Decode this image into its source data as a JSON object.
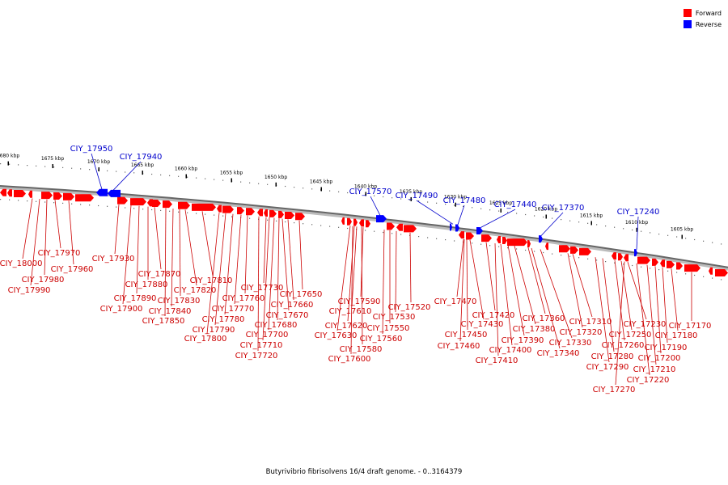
{
  "legend": [
    {
      "label": "Forward",
      "color": "#ff0000"
    },
    {
      "label": "Reverse",
      "color": "#0000ff"
    }
  ],
  "caption": "Butyrivibrio fibrisolvens 16/4 draft genome. - 0..3164379",
  "ticks": [
    {
      "label": "1680 kbp"
    },
    {
      "label": "1675 kbp"
    },
    {
      "label": "1670 kbp"
    },
    {
      "label": "1665 kbp"
    },
    {
      "label": "1660 kbp"
    },
    {
      "label": "1655 kbp"
    },
    {
      "label": "1650 kbp"
    },
    {
      "label": "1645 kbp"
    },
    {
      "label": "1640 kbp"
    },
    {
      "label": "1635 kbp"
    },
    {
      "label": "1630 kbp"
    },
    {
      "label": "1625 kbp"
    },
    {
      "label": "1620 kbp"
    },
    {
      "label": "1615 kbp"
    },
    {
      "label": "1610 kbp"
    },
    {
      "label": "1605 kbp"
    }
  ],
  "reverse_labels": [
    "CIY_17950",
    "CIY_17940",
    "CIY_17570",
    "CIY_17490",
    "CIY_17480",
    "CIY_17440",
    "CIY_17370",
    "CIY_17240"
  ],
  "forward_labels": [
    "CIY_18000",
    "CIY_17990",
    "CIY_17980",
    "CIY_17970",
    "CIY_17960",
    "CIY_17930",
    "CIY_17900",
    "CIY_17890",
    "CIY_17880",
    "CIY_17870",
    "CIY_17850",
    "CIY_17840",
    "CIY_17830",
    "CIY_17820",
    "CIY_17810",
    "CIY_17800",
    "CIY_17790",
    "CIY_17780",
    "CIY_17770",
    "CIY_17760",
    "CIY_17730",
    "CIY_17720",
    "CIY_17710",
    "CIY_17700",
    "CIY_17680",
    "CIY_17670",
    "CIY_17660",
    "CIY_17650",
    "CIY_17600",
    "CIY_17630",
    "CIY_17620",
    "CIY_17610",
    "CIY_17590",
    "CIY_17580",
    "CIY_17560",
    "CIY_17550",
    "CIY_17530",
    "CIY_17520",
    "CIY_17470",
    "CIY_17460",
    "CIY_17450",
    "CIY_17430",
    "CIY_17420",
    "CIY_17410",
    "CIY_17400",
    "CIY_17390",
    "CIY_17380",
    "CIY_17360",
    "CIY_17340",
    "CIY_17330",
    "CIY_17320",
    "CIY_17310",
    "CIY_17290",
    "CIY_17280",
    "CIY_17270",
    "CIY_17260",
    "CIY_17250",
    "CIY_17230",
    "CIY_17220",
    "CIY_17210",
    "CIY_17200",
    "CIY_17190",
    "CIY_17180",
    "CIY_17170"
  ]
}
